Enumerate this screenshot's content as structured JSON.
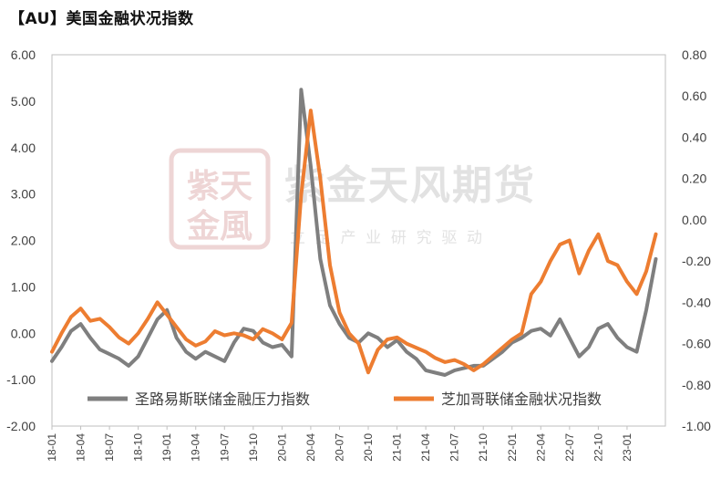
{
  "title": "【AU】美国金融状况指数",
  "watermark": {
    "seal_top": "紫天",
    "seal_bottom": "金風",
    "company": "紫金天风期货",
    "slogan": "立 足 产 业  研 究 驱 动"
  },
  "chart_data": {
    "type": "line",
    "x_ticks": [
      "18-01",
      "18-04",
      "18-07",
      "18-10",
      "19-01",
      "19-04",
      "19-07",
      "19-10",
      "20-01",
      "20-04",
      "20-07",
      "20-10",
      "21-01",
      "21-04",
      "21-07",
      "21-10",
      "22-01",
      "22-04",
      "22-07",
      "22-10",
      "23-01"
    ],
    "x_range": [
      "2018-01",
      "2023-05"
    ],
    "y_left": {
      "ticks": [
        "6.00",
        "5.00",
        "4.00",
        "3.00",
        "2.00",
        "1.00",
        "0.00",
        "-1.00",
        "-2.00"
      ],
      "min": -2,
      "max": 6
    },
    "y_right": {
      "ticks": [
        "0.80",
        "0.60",
        "0.40",
        "0.20",
        "0.00",
        "-0.20",
        "-0.40",
        "-0.60",
        "-0.80",
        "-1.00"
      ],
      "min": -1,
      "max": 0.8
    },
    "series": [
      {
        "name": "圣路易斯联储金融压力指数",
        "axis": "left",
        "color": "#7f7f7f",
        "points": [
          [
            "2018-01",
            -0.6
          ],
          [
            "2018-02",
            -0.3
          ],
          [
            "2018-03",
            0.05
          ],
          [
            "2018-04",
            0.2
          ],
          [
            "2018-05",
            -0.1
          ],
          [
            "2018-06",
            -0.35
          ],
          [
            "2018-07",
            -0.45
          ],
          [
            "2018-08",
            -0.55
          ],
          [
            "2018-09",
            -0.7
          ],
          [
            "2018-10",
            -0.5
          ],
          [
            "2018-11",
            -0.1
          ],
          [
            "2018-12",
            0.3
          ],
          [
            "2019-01",
            0.5
          ],
          [
            "2019-02",
            -0.1
          ],
          [
            "2019-03",
            -0.4
          ],
          [
            "2019-04",
            -0.55
          ],
          [
            "2019-05",
            -0.4
          ],
          [
            "2019-06",
            -0.5
          ],
          [
            "2019-07",
            -0.6
          ],
          [
            "2019-08",
            -0.2
          ],
          [
            "2019-09",
            0.1
          ],
          [
            "2019-10",
            0.05
          ],
          [
            "2019-11",
            -0.2
          ],
          [
            "2019-12",
            -0.3
          ],
          [
            "2020-01",
            -0.25
          ],
          [
            "2020-02",
            -0.5
          ],
          [
            "2020-03",
            5.25
          ],
          [
            "2020-04",
            3.6
          ],
          [
            "2020-05",
            1.6
          ],
          [
            "2020-06",
            0.6
          ],
          [
            "2020-07",
            0.2
          ],
          [
            "2020-08",
            -0.1
          ],
          [
            "2020-09",
            -0.2
          ],
          [
            "2020-10",
            0.0
          ],
          [
            "2020-11",
            -0.1
          ],
          [
            "2020-12",
            -0.3
          ],
          [
            "2021-01",
            -0.15
          ],
          [
            "2021-02",
            -0.4
          ],
          [
            "2021-03",
            -0.55
          ],
          [
            "2021-04",
            -0.8
          ],
          [
            "2021-05",
            -0.85
          ],
          [
            "2021-06",
            -0.9
          ],
          [
            "2021-07",
            -0.8
          ],
          [
            "2021-08",
            -0.75
          ],
          [
            "2021-09",
            -0.7
          ],
          [
            "2021-10",
            -0.7
          ],
          [
            "2021-11",
            -0.55
          ],
          [
            "2021-12",
            -0.4
          ],
          [
            "2022-01",
            -0.2
          ],
          [
            "2022-02",
            -0.1
          ],
          [
            "2022-03",
            0.05
          ],
          [
            "2022-04",
            0.1
          ],
          [
            "2022-05",
            -0.05
          ],
          [
            "2022-06",
            0.3
          ],
          [
            "2022-07",
            -0.1
          ],
          [
            "2022-08",
            -0.5
          ],
          [
            "2022-09",
            -0.3
          ],
          [
            "2022-10",
            0.1
          ],
          [
            "2022-11",
            0.2
          ],
          [
            "2022-12",
            -0.1
          ],
          [
            "2023-01",
            -0.3
          ],
          [
            "2023-02",
            -0.4
          ],
          [
            "2023-03",
            0.5
          ],
          [
            "2023-04",
            1.6
          ]
        ]
      },
      {
        "name": "芝加哥联储金融状况指数",
        "axis": "right",
        "color": "#ed7d31",
        "points": [
          [
            "2018-01",
            -0.64
          ],
          [
            "2018-02",
            -0.55
          ],
          [
            "2018-03",
            -0.47
          ],
          [
            "2018-04",
            -0.43
          ],
          [
            "2018-05",
            -0.49
          ],
          [
            "2018-06",
            -0.48
          ],
          [
            "2018-07",
            -0.52
          ],
          [
            "2018-08",
            -0.57
          ],
          [
            "2018-09",
            -0.6
          ],
          [
            "2018-10",
            -0.55
          ],
          [
            "2018-11",
            -0.48
          ],
          [
            "2018-12",
            -0.4
          ],
          [
            "2019-01",
            -0.46
          ],
          [
            "2019-02",
            -0.52
          ],
          [
            "2019-03",
            -0.58
          ],
          [
            "2019-04",
            -0.61
          ],
          [
            "2019-05",
            -0.59
          ],
          [
            "2019-06",
            -0.54
          ],
          [
            "2019-07",
            -0.56
          ],
          [
            "2019-08",
            -0.55
          ],
          [
            "2019-09",
            -0.56
          ],
          [
            "2019-10",
            -0.58
          ],
          [
            "2019-11",
            -0.53
          ],
          [
            "2019-12",
            -0.55
          ],
          [
            "2020-01",
            -0.58
          ],
          [
            "2020-02",
            -0.5
          ],
          [
            "2020-03",
            0.12
          ],
          [
            "2020-04",
            0.53
          ],
          [
            "2020-05",
            0.2
          ],
          [
            "2020-06",
            -0.22
          ],
          [
            "2020-07",
            -0.45
          ],
          [
            "2020-08",
            -0.55
          ],
          [
            "2020-09",
            -0.6
          ],
          [
            "2020-10",
            -0.74
          ],
          [
            "2020-11",
            -0.63
          ],
          [
            "2020-12",
            -0.58
          ],
          [
            "2021-01",
            -0.57
          ],
          [
            "2021-02",
            -0.6
          ],
          [
            "2021-03",
            -0.62
          ],
          [
            "2021-04",
            -0.64
          ],
          [
            "2021-05",
            -0.67
          ],
          [
            "2021-06",
            -0.69
          ],
          [
            "2021-07",
            -0.68
          ],
          [
            "2021-08",
            -0.7
          ],
          [
            "2021-09",
            -0.73
          ],
          [
            "2021-10",
            -0.7
          ],
          [
            "2021-11",
            -0.66
          ],
          [
            "2021-12",
            -0.62
          ],
          [
            "2022-01",
            -0.58
          ],
          [
            "2022-02",
            -0.55
          ],
          [
            "2022-03",
            -0.36
          ],
          [
            "2022-04",
            -0.3
          ],
          [
            "2022-05",
            -0.2
          ],
          [
            "2022-06",
            -0.12
          ],
          [
            "2022-07",
            -0.1
          ],
          [
            "2022-08",
            -0.26
          ],
          [
            "2022-09",
            -0.15
          ],
          [
            "2022-10",
            -0.07
          ],
          [
            "2022-11",
            -0.2
          ],
          [
            "2022-12",
            -0.22
          ],
          [
            "2023-01",
            -0.3
          ],
          [
            "2023-02",
            -0.36
          ],
          [
            "2023-03",
            -0.25
          ],
          [
            "2023-04",
            -0.07
          ]
        ]
      }
    ],
    "grid": false,
    "legend_position": "bottom"
  }
}
